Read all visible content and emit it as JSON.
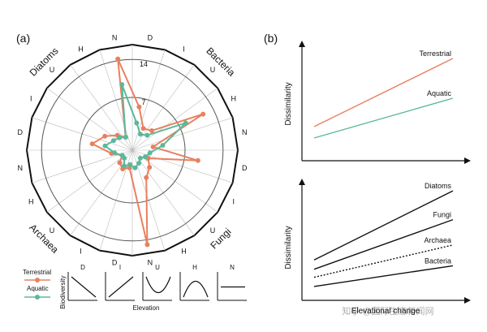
{
  "panel_a_label": "(a)",
  "panel_b_label": "(b)",
  "colors": {
    "terrestrial": "#e8805f",
    "aquatic": "#5bb89a",
    "axis": "#111111",
    "grid": "#999999"
  },
  "watermark": "知乎 @国际生态新闻网",
  "chart_data": [
    {
      "type": "radar",
      "title": "",
      "rlim": [
        0,
        14
      ],
      "r_ticks": [
        7,
        14
      ],
      "groups": [
        "Bacteria",
        "Fungi",
        "Archaea",
        "Diatoms"
      ],
      "categories": [
        "D",
        "I",
        "U",
        "H",
        "N",
        "D",
        "I",
        "U",
        "H",
        "N",
        "D",
        "I",
        "U",
        "H",
        "N",
        "D",
        "I",
        "U",
        "H",
        "N"
      ],
      "group_of_category": [
        "Bacteria",
        "Bacteria",
        "Bacteria",
        "Bacteria",
        "Bacteria",
        "Fungi",
        "Fungi",
        "Fungi",
        "Fungi",
        "Fungi",
        "Archaea",
        "Archaea",
        "Archaea",
        "Archaea",
        "Archaea",
        "Diatoms",
        "Diatoms",
        "Diatoms",
        "Diatoms",
        "Diatoms"
      ],
      "series": [
        {
          "name": "Terrestrial",
          "values": [
            6,
            3,
            3.5,
            11.5,
            2.5,
            9.5,
            2,
            3,
            4,
            14,
            2,
            2.5,
            2,
            1,
            2.5,
            5.5,
            4,
            2.5,
            1.5,
            13.5
          ]
        },
        {
          "name": "Aquatic",
          "values": [
            3.5,
            2,
            2.5,
            8.5,
            4,
            2,
            1.5,
            1,
            1.5,
            2,
            1.5,
            2,
            1,
            1,
            2,
            3.5,
            2.5,
            2,
            1.5,
            9.5
          ]
        }
      ],
      "legend": [
        "Terrestrial",
        "Aquatic"
      ],
      "legend_position": "bottom-left"
    },
    {
      "type": "small-multiples-line",
      "title": "",
      "xlabel": "Elevation",
      "ylabel": "Biodiversity",
      "panels": [
        {
          "label": "D",
          "shape": "decreasing"
        },
        {
          "label": "I",
          "shape": "increasing"
        },
        {
          "label": "U",
          "shape": "u-shaped"
        },
        {
          "label": "H",
          "shape": "hump-shaped"
        },
        {
          "label": "N",
          "shape": "no-pattern"
        }
      ]
    },
    {
      "type": "line",
      "title": "",
      "xlabel": "",
      "ylabel": "Dissimilarity",
      "series": [
        {
          "name": "Terrestrial",
          "x": [
            0,
            1
          ],
          "values": [
            0.3,
            0.9
          ]
        },
        {
          "name": "Aquatic",
          "x": [
            0,
            1
          ],
          "values": [
            0.2,
            0.55
          ]
        }
      ]
    },
    {
      "type": "line",
      "title": "",
      "xlabel": "Elevational change",
      "ylabel": "Dissimilarity",
      "series": [
        {
          "name": "Diatoms",
          "x": [
            0,
            1
          ],
          "values": [
            0.35,
            0.95
          ],
          "dash": "solid"
        },
        {
          "name": "Fungi",
          "x": [
            0,
            1
          ],
          "values": [
            0.27,
            0.7
          ],
          "dash": "solid"
        },
        {
          "name": "Archaea",
          "x": [
            0,
            1
          ],
          "values": [
            0.2,
            0.48
          ],
          "dash": "dotted"
        },
        {
          "name": "Bacteria",
          "x": [
            0,
            1
          ],
          "values": [
            0.12,
            0.3
          ],
          "dash": "solid"
        }
      ]
    }
  ]
}
